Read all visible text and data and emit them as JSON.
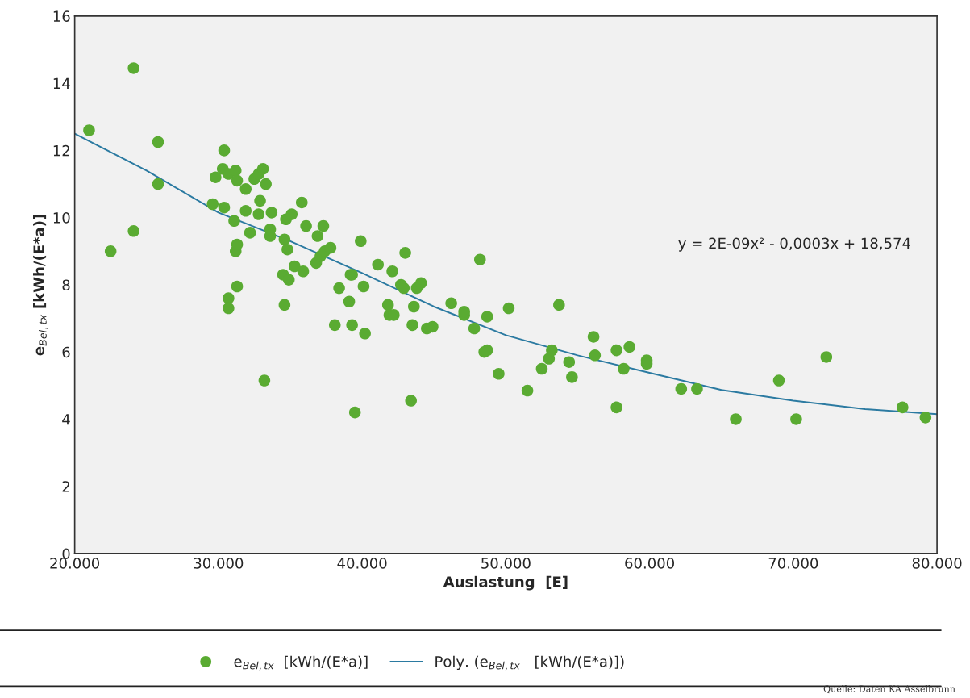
{
  "chart_data": {
    "type": "scatter",
    "xlabel": "Auslastung  [E]",
    "ylabel": "e$_{Bel,tx}$ [kWh/(E*a)]",
    "xlim": [
      20000,
      80000
    ],
    "ylim": [
      0,
      16
    ],
    "xticks": [
      {
        "value": 20000,
        "label": "20.000"
      },
      {
        "value": 30000,
        "label": "30.000"
      },
      {
        "value": 40000,
        "label": "40.000"
      },
      {
        "value": 50000,
        "label": "50.000"
      },
      {
        "value": 60000,
        "label": "60.000"
      },
      {
        "value": 70000,
        "label": "70.000"
      },
      {
        "value": 80000,
        "label": "80.000"
      }
    ],
    "yticks": [
      0,
      2,
      4,
      6,
      8,
      10,
      12,
      14,
      16
    ],
    "grid": false,
    "legend": "bottom",
    "marker": "circle",
    "series": [
      {
        "name": "e$_{Bel,tx}$  [kWh/(E*a)]",
        "color": "#5aab32",
        "x": [
          21000,
          22500,
          24100,
          24100,
          25800,
          25800,
          29600,
          29800,
          30400,
          30300,
          30700,
          30400,
          30700,
          30700,
          31300,
          31200,
          31300,
          31100,
          31200,
          31300,
          31900,
          31900,
          32200,
          32500,
          32800,
          33100,
          32900,
          32800,
          33300,
          33200,
          33600,
          33600,
          33700,
          34500,
          34600,
          34600,
          34700,
          34800,
          34900,
          35100,
          35300,
          35800,
          35900,
          36100,
          36800,
          36900,
          37100,
          37300,
          37400,
          37800,
          38100,
          38400,
          39100,
          39200,
          39300,
          39300,
          39500,
          39900,
          40100,
          40200,
          41100,
          41800,
          41900,
          42200,
          42100,
          42700,
          42900,
          43000,
          43400,
          43500,
          43600,
          43800,
          44100,
          44500,
          44900,
          46200,
          47100,
          47100,
          47800,
          48200,
          48500,
          48700,
          48700,
          49500,
          50200,
          51500,
          52500,
          53000,
          53200,
          53700,
          54400,
          54600,
          56100,
          56200,
          57700,
          57700,
          58200,
          58600,
          59800,
          59800,
          62200,
          63300,
          66000,
          69000,
          70200,
          72300,
          77600,
          79200
        ],
        "values": [
          12.6,
          9.0,
          14.45,
          9.6,
          12.25,
          11.0,
          10.4,
          11.2,
          12.0,
          11.45,
          11.3,
          10.3,
          7.6,
          7.3,
          7.95,
          11.4,
          11.1,
          9.9,
          9.0,
          9.2,
          10.2,
          10.85,
          9.55,
          11.15,
          11.3,
          11.45,
          10.5,
          10.1,
          11.0,
          5.15,
          9.45,
          9.65,
          10.15,
          8.3,
          7.4,
          9.35,
          9.95,
          9.05,
          8.15,
          10.1,
          8.55,
          10.45,
          8.4,
          9.75,
          8.65,
          9.45,
          8.85,
          9.75,
          9.0,
          9.1,
          6.8,
          7.9,
          7.5,
          8.3,
          8.3,
          6.8,
          4.2,
          9.3,
          7.95,
          6.55,
          8.6,
          7.4,
          7.1,
          7.1,
          8.4,
          8.0,
          7.9,
          8.95,
          4.55,
          6.8,
          7.35,
          7.9,
          8.05,
          6.7,
          6.75,
          7.45,
          7.1,
          7.2,
          6.7,
          8.75,
          6.0,
          6.05,
          7.05,
          5.35,
          7.3,
          4.85,
          5.5,
          5.8,
          6.05,
          7.4,
          5.7,
          5.25,
          6.45,
          5.9,
          4.35,
          6.05,
          5.5,
          6.15,
          5.75,
          5.65,
          4.9,
          4.9,
          4.0,
          5.15,
          4.0,
          5.85,
          4.35,
          4.05
        ]
      },
      {
        "name": "Poly. (e$_{Bel,tx}$   [kWh/(E*a)])",
        "type": "line",
        "color": "#2b7aa1",
        "marker": "none",
        "line_style": "solid",
        "x": [
          20000,
          25000,
          30000,
          35000,
          40000,
          45000,
          50000,
          55000,
          60000,
          65000,
          70000,
          75000,
          80000
        ],
        "values": [
          12.5,
          11.4,
          10.15,
          9.3,
          8.35,
          7.35,
          6.5,
          5.9,
          5.38,
          4.87,
          4.55,
          4.3,
          4.15
        ]
      }
    ],
    "annotations": [
      "y = 2E-09x² - 0,0003x + 18,574",
      "Quelle: Daten KA Asselbrunn"
    ]
  }
}
